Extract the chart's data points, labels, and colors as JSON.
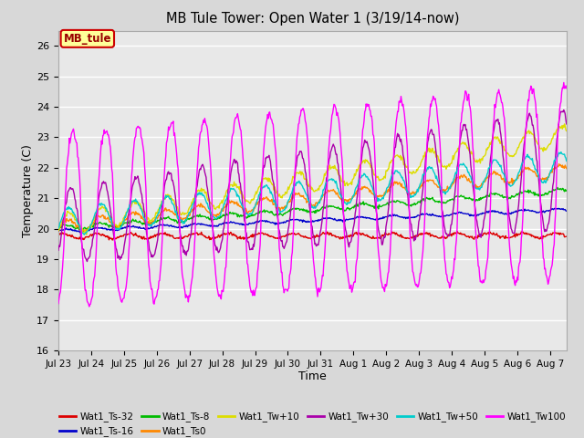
{
  "title": "MB Tule Tower: Open Water 1 (3/19/14-now)",
  "xlabel": "Time",
  "ylabel": "Temperature (C)",
  "ylim": [
    16.0,
    26.5
  ],
  "yticks": [
    16.0,
    17.0,
    18.0,
    19.0,
    20.0,
    21.0,
    22.0,
    23.0,
    24.0,
    25.0,
    26.0
  ],
  "background_color": "#d8d8d8",
  "plot_background": "#e8e8e8",
  "grid_color": "#ffffff",
  "series": [
    {
      "name": "Wat1_Ts-32",
      "color": "#dd0000"
    },
    {
      "name": "Wat1_Ts-16",
      "color": "#0000cc"
    },
    {
      "name": "Wat1_Ts-8",
      "color": "#00bb00"
    },
    {
      "name": "Wat1_Ts0",
      "color": "#ff8800"
    },
    {
      "name": "Wat1_Tw+10",
      "color": "#dddd00"
    },
    {
      "name": "Wat1_Tw+30",
      "color": "#aa00aa"
    },
    {
      "name": "Wat1_Tw+50",
      "color": "#00cccc"
    },
    {
      "name": "Wat1_Tw100",
      "color": "#ff00ff"
    }
  ],
  "xtick_labels": [
    "Jul 23",
    "Jul 24",
    "Jul 25",
    "Jul 26",
    "Jul 27",
    "Jul 28",
    "Jul 29",
    "Jul 30",
    "Jul 31",
    "Aug 1",
    "Aug 2",
    "Aug 3",
    "Aug 4",
    "Aug 5",
    "Aug 6",
    "Aug 7"
  ],
  "legend_label": "MB_tule",
  "legend_bg": "#ffff99",
  "legend_border": "#cc0000"
}
